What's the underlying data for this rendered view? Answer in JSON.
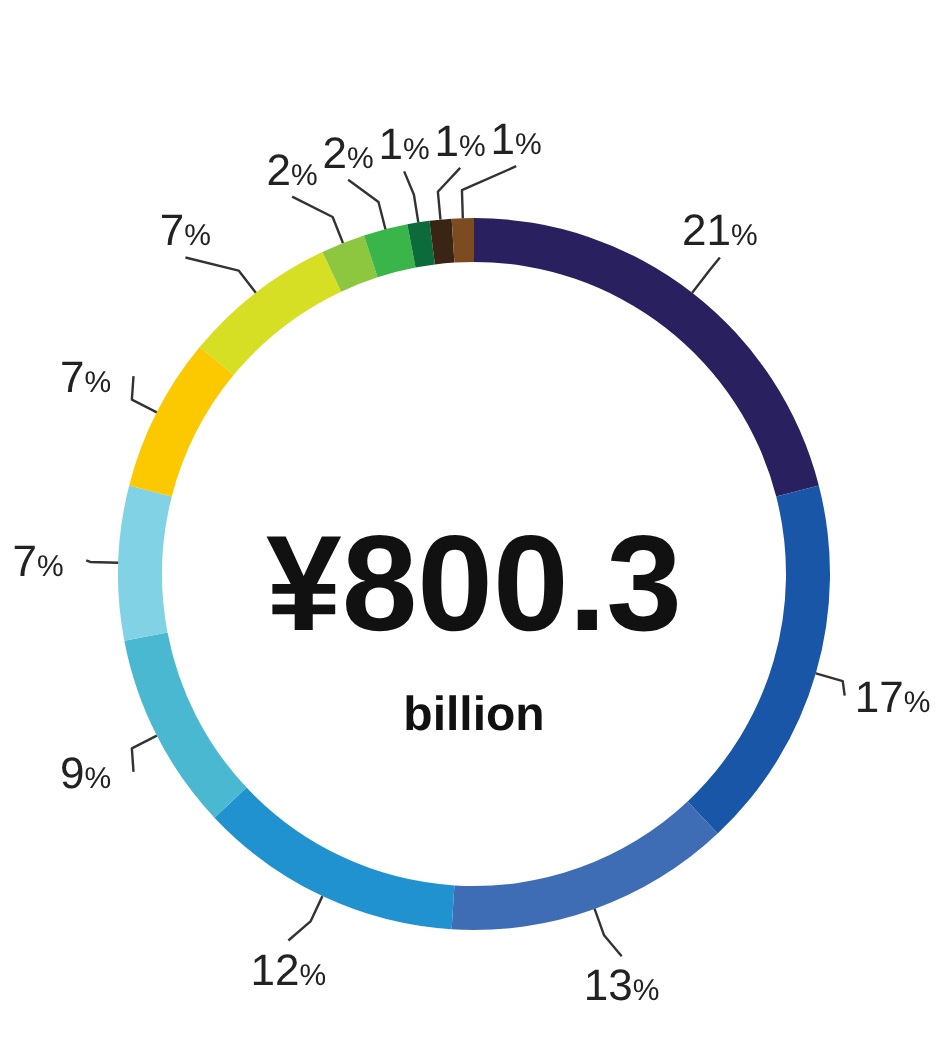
{
  "chart_data": {
    "type": "donut",
    "categories": [
      null,
      null,
      null,
      null,
      null,
      null,
      null,
      null,
      null,
      null,
      null,
      null,
      null
    ],
    "values": [
      21,
      17,
      13,
      12,
      9,
      7,
      7,
      7,
      2,
      2,
      1,
      1,
      1
    ],
    "colors": [
      "#29205f",
      "#1a56a7",
      "#3e6db6",
      "#2092d0",
      "#4bb8d1",
      "#80d2e4",
      "#fcc800",
      "#d6df24",
      "#8dc63f",
      "#39b54a",
      "#0b6b3a",
      "#3a2414",
      "#7d4b22"
    ],
    "value_labels": [
      "21%",
      "17%",
      "13%",
      "12%",
      "9%",
      "7%",
      "7%",
      "7%",
      "2%",
      "2%",
      "1%",
      "1%",
      "1%"
    ],
    "annotations": [
      "¥800.3",
      "billion"
    ]
  }
}
